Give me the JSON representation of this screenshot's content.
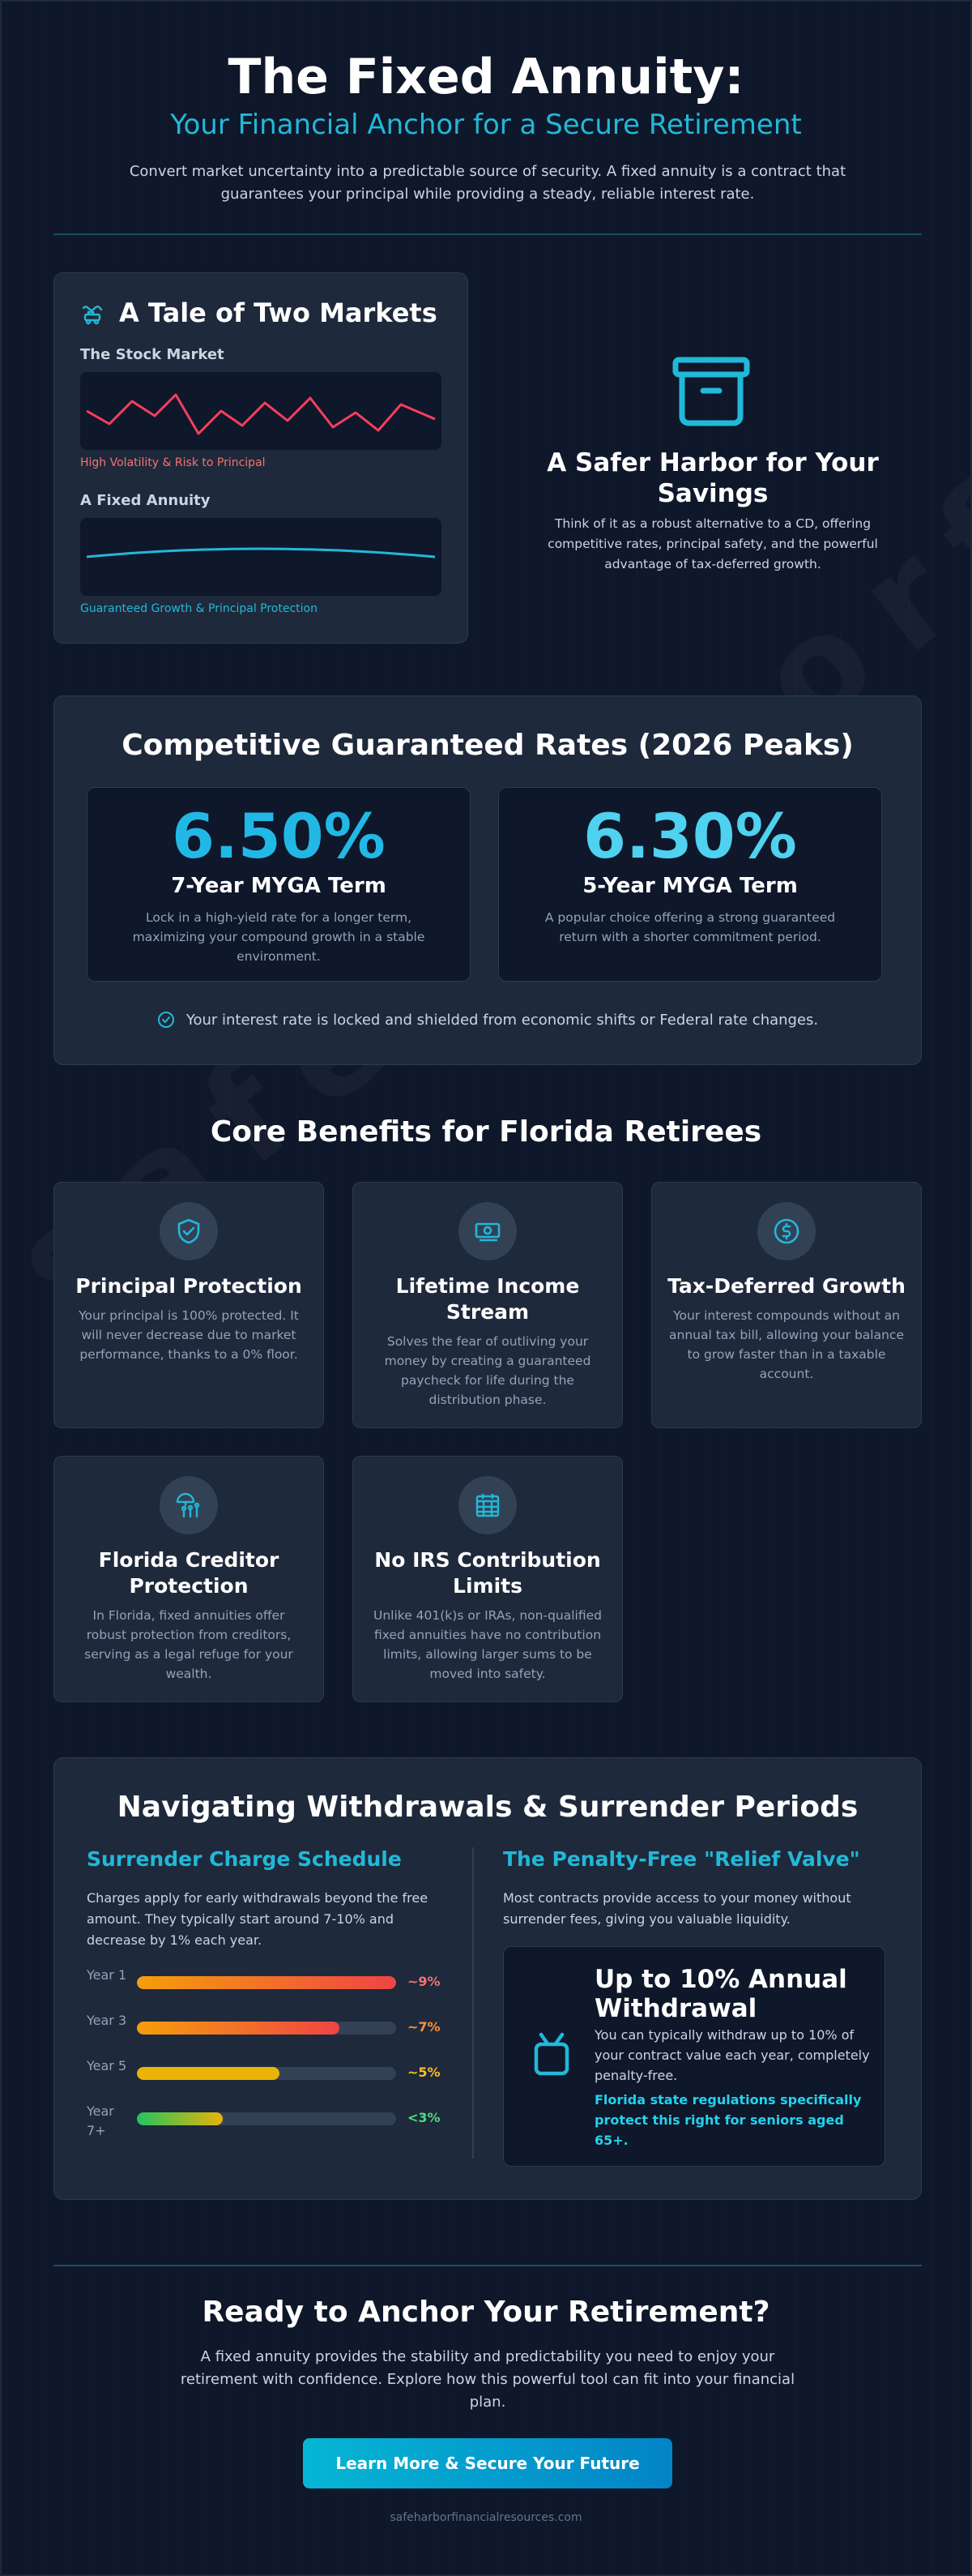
{
  "hero": {
    "title": "The Fixed Annuity:",
    "subtitle": "Your Financial Anchor for a Secure Retirement",
    "description": "Convert market uncertainty into a predictable source of security. A fixed annuity is a contract that guarantees your principal while providing a steady, reliable interest rate."
  },
  "tale": {
    "title": "A Tale of Two Markets",
    "icon": "roller-coaster-icon",
    "stock_label": "The Stock Market",
    "stock_caption": "High Volatility & Risk to Principal",
    "annuity_label": "A Fixed Annuity",
    "annuity_caption": "Guaranteed Growth & Principal Protection"
  },
  "harbor": {
    "icon": "archive-box-icon",
    "title": "A Safer Harbor for Your Savings",
    "description": "Think of it as a robust alternative to a CD, offering competitive rates, principal safety, and the powerful advantage of tax-deferred growth."
  },
  "rates": {
    "title": "Competitive Guaranteed Rates (2026 Peaks)",
    "items": [
      {
        "rate": "6.50%",
        "term": "7-Year MYGA Term",
        "description": "Lock in a high-yield rate for a longer term, maximizing your compound growth in a stable environment.",
        "color": "#22b8e6"
      },
      {
        "rate": "6.30%",
        "term": "5-Year MYGA Term",
        "description": "A popular choice offering a strong guaranteed return with a shorter commitment period.",
        "color": "#4fd1f0"
      }
    ],
    "note": "Your interest rate is locked and shielded from economic shifts or Federal rate changes."
  },
  "benefits": {
    "title": "Core Benefits for Florida Retirees",
    "items": [
      {
        "icon": "shield-check-icon",
        "title": "Principal Protection",
        "description": "Your principal is 100% protected. It will never decrease due to market performance, thanks to a 0% floor."
      },
      {
        "icon": "money-bill-icon",
        "title": "Lifetime Income Stream",
        "description": "Solves the fear of outliving your money by creating a guaranteed paycheck for life during the distribution phase."
      },
      {
        "icon": "dollar-circle-icon",
        "title": "Tax-Deferred Growth",
        "description": "Your interest compounds without an annual tax bill, allowing your balance to grow faster than in a taxable account."
      },
      {
        "icon": "umbrella-family-icon",
        "title": "Florida Creditor Protection",
        "description": "In Florida, fixed annuities offer robust protection from creditors, serving as a legal refuge for your wealth."
      },
      {
        "icon": "calendar-grid-icon",
        "title": "No IRS Contribution Limits",
        "description": "Unlike 401(k)s or IRAs, non-qualified fixed annuities have no contribution limits, allowing larger sums to be moved into safety."
      }
    ]
  },
  "withdrawals": {
    "title": "Navigating Withdrawals & Surrender Periods",
    "schedule_title": "Surrender Charge Schedule",
    "schedule_desc": "Charges apply for early withdrawals beyond the free amount. They typically start around 7-10% and decrease by 1% each year.",
    "schedule": [
      {
        "year": "Year 1",
        "label": "~9%",
        "fill": 1.0,
        "color": "#f87171"
      },
      {
        "year": "Year 3",
        "label": "~7%",
        "fill": 0.78,
        "color": "#fb923c"
      },
      {
        "year": "Year 5",
        "label": "~5%",
        "fill": 0.55,
        "color": "#fbbf24"
      },
      {
        "year": "Year 7+",
        "label": "<3%",
        "fill": 0.33,
        "color": "#4ade80"
      }
    ],
    "relief_title": "The Penalty-Free \"Relief Valve\"",
    "relief_desc": "Most contracts provide access to your money without surrender fees, giving you valuable liquidity.",
    "relief_box": {
      "icon": "gift-box-icon",
      "title": "Up to 10% Annual Withdrawal",
      "description": "You can typically withdraw up to 10% of your contract value each year, completely penalty-free.",
      "highlight": "Florida state regulations specifically protect this right for seniors aged 65+."
    }
  },
  "cta": {
    "title": "Ready to Anchor Your Retirement?",
    "description": "A fixed annuity provides the stability and predictability you need to enjoy your retirement with confidence. Explore how this powerful tool can fit into your financial plan.",
    "button": "Learn More & Secure Your Future",
    "footer": "safeharborfinancialresources.com"
  },
  "watermark": "safeharborfinancial"
}
